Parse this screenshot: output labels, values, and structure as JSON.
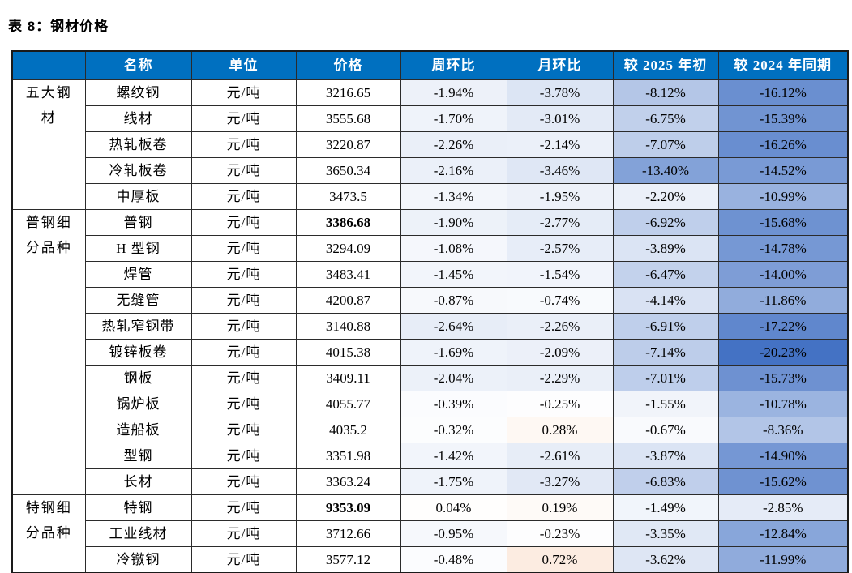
{
  "title": "表 8：钢材价格",
  "colors": {
    "header_bg": "#0070C0",
    "header_text": "#FFFFFF",
    "heat_negative_anchor": "#4472C4",
    "heat_positive_anchor": "#ED7D31",
    "cell_default_bg": "#FFFFFF"
  },
  "heat_scale": {
    "negative_full_at": -20.23,
    "positive_full_at": 5
  },
  "table": {
    "headers": [
      "",
      "名称",
      "单位",
      "价格",
      "周环比",
      "月环比",
      "较 2025 年初",
      "较 2024 年同期"
    ],
    "groups": [
      {
        "label": "五大钢材",
        "rows": [
          {
            "name": "螺纹钢",
            "unit": "元/吨",
            "price": "3216.65",
            "bold": false,
            "wow": "-1.94%",
            "mom": "-3.78%",
            "ytd": "-8.12%",
            "yoy": "-16.12%"
          },
          {
            "name": "线材",
            "unit": "元/吨",
            "price": "3555.68",
            "bold": false,
            "wow": "-1.70%",
            "mom": "-3.01%",
            "ytd": "-6.75%",
            "yoy": "-15.39%"
          },
          {
            "name": "热轧板卷",
            "unit": "元/吨",
            "price": "3220.87",
            "bold": false,
            "wow": "-2.26%",
            "mom": "-2.14%",
            "ytd": "-7.07%",
            "yoy": "-16.26%"
          },
          {
            "name": "冷轧板卷",
            "unit": "元/吨",
            "price": "3650.34",
            "bold": false,
            "wow": "-2.16%",
            "mom": "-3.46%",
            "ytd": "-13.40%",
            "yoy": "-14.52%"
          },
          {
            "name": "中厚板",
            "unit": "元/吨",
            "price": "3473.5",
            "bold": false,
            "wow": "-1.34%",
            "mom": "-1.95%",
            "ytd": "-2.20%",
            "yoy": "-10.99%"
          }
        ]
      },
      {
        "label": "普钢细分品种",
        "rows": [
          {
            "name": "普钢",
            "unit": "元/吨",
            "price": "3386.68",
            "bold": true,
            "wow": "-1.90%",
            "mom": "-2.77%",
            "ytd": "-6.92%",
            "yoy": "-15.68%"
          },
          {
            "name": "H 型钢",
            "unit": "元/吨",
            "price": "3294.09",
            "bold": false,
            "wow": "-1.08%",
            "mom": "-2.57%",
            "ytd": "-3.89%",
            "yoy": "-14.78%"
          },
          {
            "name": "焊管",
            "unit": "元/吨",
            "price": "3483.41",
            "bold": false,
            "wow": "-1.45%",
            "mom": "-1.54%",
            "ytd": "-6.47%",
            "yoy": "-14.00%"
          },
          {
            "name": "无缝管",
            "unit": "元/吨",
            "price": "4200.87",
            "bold": false,
            "wow": "-0.87%",
            "mom": "-0.74%",
            "ytd": "-4.14%",
            "yoy": "-11.86%"
          },
          {
            "name": "热轧窄钢带",
            "unit": "元/吨",
            "price": "3140.88",
            "bold": false,
            "wow": "-2.64%",
            "mom": "-2.26%",
            "ytd": "-6.91%",
            "yoy": "-17.22%"
          },
          {
            "name": "镀锌板卷",
            "unit": "元/吨",
            "price": "4015.38",
            "bold": false,
            "wow": "-1.69%",
            "mom": "-2.09%",
            "ytd": "-7.14%",
            "yoy": "-20.23%"
          },
          {
            "name": "钢板",
            "unit": "元/吨",
            "price": "3409.11",
            "bold": false,
            "wow": "-2.04%",
            "mom": "-2.29%",
            "ytd": "-7.01%",
            "yoy": "-15.73%"
          },
          {
            "name": "锅炉板",
            "unit": "元/吨",
            "price": "4055.77",
            "bold": false,
            "wow": "-0.39%",
            "mom": "-0.25%",
            "ytd": "-1.55%",
            "yoy": "-10.78%"
          },
          {
            "name": "造船板",
            "unit": "元/吨",
            "price": "4035.2",
            "bold": false,
            "wow": "-0.32%",
            "mom": "0.28%",
            "ytd": "-0.67%",
            "yoy": "-8.36%"
          },
          {
            "name": "型钢",
            "unit": "元/吨",
            "price": "3351.98",
            "bold": false,
            "wow": "-1.42%",
            "mom": "-2.61%",
            "ytd": "-3.87%",
            "yoy": "-14.90%"
          },
          {
            "name": "长材",
            "unit": "元/吨",
            "price": "3363.24",
            "bold": false,
            "wow": "-1.75%",
            "mom": "-3.27%",
            "ytd": "-6.83%",
            "yoy": "-15.62%"
          }
        ]
      },
      {
        "label": "特钢细分品种",
        "rows": [
          {
            "name": "特钢",
            "unit": "元/吨",
            "price": "9353.09",
            "bold": true,
            "wow": "0.04%",
            "mom": "0.19%",
            "ytd": "-1.49%",
            "yoy": "-2.85%"
          },
          {
            "name": "工业线材",
            "unit": "元/吨",
            "price": "3712.66",
            "bold": false,
            "wow": "-0.95%",
            "mom": "-0.23%",
            "ytd": "-3.35%",
            "yoy": "-12.84%"
          },
          {
            "name": "冷镦钢",
            "unit": "元/吨",
            "price": "3577.12",
            "bold": false,
            "wow": "-0.48%",
            "mom": "0.72%",
            "ytd": "-3.62%",
            "yoy": "-11.99%"
          }
        ]
      }
    ]
  }
}
